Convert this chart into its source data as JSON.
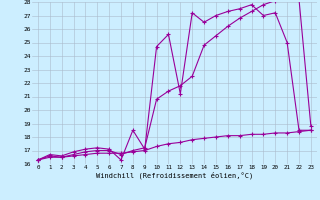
{
  "xlabel": "Windchill (Refroidissement éolien,°C)",
  "xlim": [
    -0.5,
    23.5
  ],
  "ylim": [
    16,
    28
  ],
  "xticks": [
    0,
    1,
    2,
    3,
    4,
    5,
    6,
    7,
    8,
    9,
    10,
    11,
    12,
    13,
    14,
    15,
    16,
    17,
    18,
    19,
    20,
    21,
    22,
    23
  ],
  "yticks": [
    16,
    17,
    18,
    19,
    20,
    21,
    22,
    23,
    24,
    25,
    26,
    27,
    28
  ],
  "bg_color": "#cceeff",
  "line_color": "#990099",
  "grid_color": "#aabbcc",
  "line1_x": [
    0,
    1,
    2,
    3,
    4,
    5,
    6,
    7,
    8,
    9,
    10,
    11,
    12,
    13,
    14,
    15,
    16,
    17,
    18,
    19,
    20,
    21,
    22,
    23
  ],
  "line1_y": [
    16.3,
    16.7,
    16.6,
    16.9,
    17.1,
    17.2,
    17.1,
    16.3,
    18.5,
    17.1,
    24.7,
    25.6,
    21.2,
    27.2,
    26.5,
    27.0,
    27.3,
    27.5,
    27.8,
    27.0,
    27.2,
    25.0,
    18.5,
    18.5
  ],
  "line2_x": [
    0,
    1,
    2,
    3,
    4,
    5,
    6,
    7,
    8,
    9,
    10,
    11,
    12,
    13,
    14,
    15,
    16,
    17,
    18,
    19,
    20,
    21,
    22,
    23
  ],
  "line2_y": [
    16.3,
    16.6,
    16.5,
    16.7,
    16.9,
    17.0,
    17.0,
    16.7,
    17.0,
    17.2,
    20.8,
    21.4,
    21.8,
    22.5,
    24.8,
    25.5,
    26.2,
    26.8,
    27.3,
    27.8,
    28.1,
    28.2,
    28.2,
    18.8
  ],
  "line3_x": [
    0,
    1,
    2,
    3,
    4,
    5,
    6,
    7,
    8,
    9,
    10,
    11,
    12,
    13,
    14,
    15,
    16,
    17,
    18,
    19,
    20,
    21,
    22,
    23
  ],
  "line3_y": [
    16.3,
    16.5,
    16.5,
    16.6,
    16.7,
    16.8,
    16.8,
    16.8,
    16.9,
    17.0,
    17.3,
    17.5,
    17.6,
    17.8,
    17.9,
    18.0,
    18.1,
    18.1,
    18.2,
    18.2,
    18.3,
    18.3,
    18.4,
    18.5
  ]
}
